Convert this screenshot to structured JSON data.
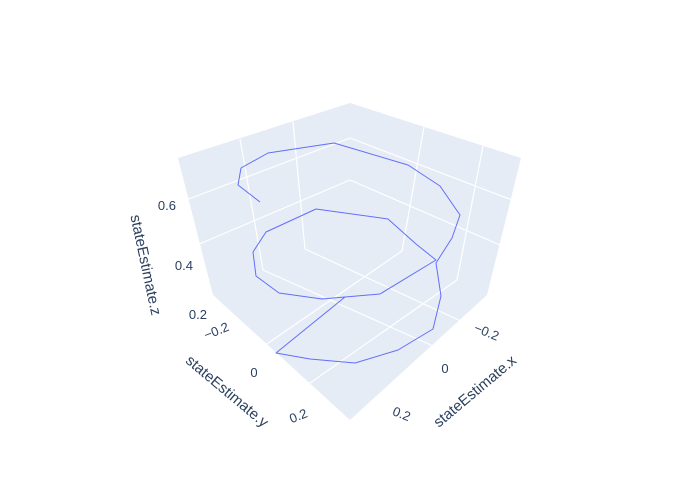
{
  "chart_data": {
    "type": "line3d",
    "mode": "lines",
    "axes": {
      "x": {
        "title": "stateEstimate.x",
        "ticks": [
          "−0.2",
          "0",
          "0.2"
        ]
      },
      "y": {
        "title": "stateEstimate.y",
        "ticks": [
          "−0.2",
          "0",
          "0.2"
        ]
      },
      "z": {
        "title": "stateEstimate.z",
        "ticks": [
          "0.2",
          "0.4",
          "0.6"
        ]
      }
    },
    "line_color": "#636efa",
    "scene_background": "#e5ecf6",
    "grid": true,
    "legend": "none"
  }
}
